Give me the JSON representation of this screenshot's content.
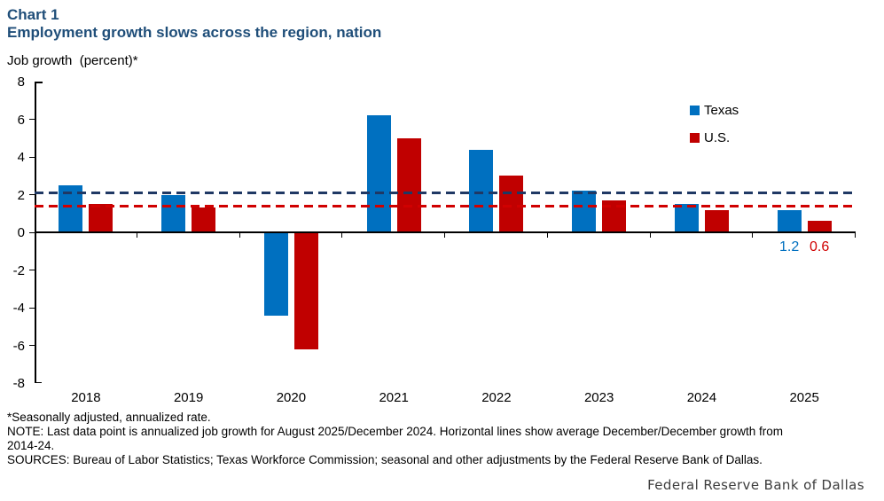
{
  "header": {
    "chart_number": "Chart 1",
    "title": "Employment growth slows across the region, nation"
  },
  "chart_data": {
    "type": "bar",
    "title": "Employment growth slows across the region, nation",
    "ylabel": "Job growth  (percent)*",
    "categories": [
      "2018",
      "2019",
      "2020",
      "2021",
      "2022",
      "2023",
      "2024",
      "2025"
    ],
    "series": [
      {
        "name": "Texas",
        "color": "#0070C0",
        "values": [
          2.5,
          2.0,
          -4.4,
          6.2,
          4.4,
          2.2,
          1.5,
          1.2
        ]
      },
      {
        "name": "U.S.",
        "color": "#C00000",
        "values": [
          1.5,
          1.3,
          -6.2,
          5.0,
          3.0,
          1.7,
          1.2,
          0.6
        ]
      }
    ],
    "reference_lines": [
      {
        "name": "Texas average December/December growth 2014-24",
        "value": 2.1,
        "color": "#1F3864",
        "style": "dashed"
      },
      {
        "name": "U.S. average December/December growth 2014-24",
        "value": 1.4,
        "color": "#D00000",
        "style": "dashed"
      }
    ],
    "last_point_labels": [
      {
        "series": "Texas",
        "text": "1.2",
        "color": "#0070C0"
      },
      {
        "series": "U.S.",
        "text": "0.6",
        "color": "#D00000"
      }
    ],
    "ylim": [
      -8,
      8
    ],
    "yticks": [
      8,
      6,
      4,
      2,
      0,
      -2,
      -4,
      -6,
      -8
    ],
    "grid": false,
    "legend_position": "top-right"
  },
  "footnotes": {
    "lines": [
      "*Seasonally adjusted, annualized rate.",
      "NOTE: Last data point is annualized job growth for August 2025/December 2024. Horizontal lines show average December/December growth from",
      "2014-24.",
      "SOURCES: Bureau of Labor Statistics; Texas Workforce Commission; seasonal and other adjustments by the Federal Reserve Bank of Dallas."
    ]
  },
  "branding": "Federal Reserve Bank of Dallas",
  "colors": {
    "title": "#1F4E79",
    "texas": "#0070C0",
    "us": "#C00000",
    "texas_avg_line": "#1F3864",
    "us_avg_line": "#D00000"
  }
}
